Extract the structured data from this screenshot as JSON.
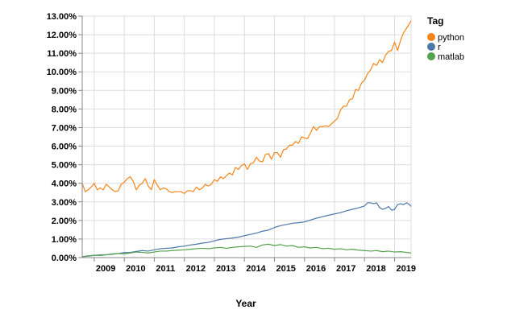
{
  "chart_data": {
    "type": "line",
    "xlabel": "Year",
    "ylabel": "",
    "xlim": [
      2008.6,
      2019.55
    ],
    "ylim": [
      0,
      13
    ],
    "x_ticks": [
      "2009",
      "2010",
      "2011",
      "2012",
      "2013",
      "2014",
      "2015",
      "2016",
      "2017",
      "2018",
      "2019"
    ],
    "y_ticks": [
      "0.00%",
      "1.00%",
      "2.00%",
      "3.00%",
      "4.00%",
      "5.00%",
      "6.00%",
      "7.00%",
      "8.00%",
      "9.00%",
      "10.00%",
      "11.00%",
      "12.00%",
      "13.00%"
    ],
    "grid": true,
    "legend": {
      "title": "Tag",
      "position": "right"
    },
    "series": [
      {
        "name": "python",
        "color": "#f58518",
        "points": [
          [
            2008.6,
            4.0
          ],
          [
            2008.7,
            3.55
          ],
          [
            2008.8,
            3.65
          ],
          [
            2008.9,
            3.8
          ],
          [
            2009.0,
            4.0
          ],
          [
            2009.1,
            3.65
          ],
          [
            2009.2,
            3.75
          ],
          [
            2009.3,
            3.65
          ],
          [
            2009.4,
            3.95
          ],
          [
            2009.5,
            3.8
          ],
          [
            2009.6,
            3.65
          ],
          [
            2009.7,
            3.55
          ],
          [
            2009.8,
            3.6
          ],
          [
            2009.9,
            3.95
          ],
          [
            2010.0,
            4.05
          ],
          [
            2010.1,
            4.25
          ],
          [
            2010.2,
            4.35
          ],
          [
            2010.3,
            4.1
          ],
          [
            2010.4,
            3.65
          ],
          [
            2010.5,
            3.9
          ],
          [
            2010.6,
            4.0
          ],
          [
            2010.7,
            4.25
          ],
          [
            2010.8,
            3.85
          ],
          [
            2010.9,
            3.65
          ],
          [
            2011.0,
            4.2
          ],
          [
            2011.1,
            3.9
          ],
          [
            2011.2,
            3.65
          ],
          [
            2011.3,
            3.75
          ],
          [
            2011.4,
            3.7
          ],
          [
            2011.5,
            3.55
          ],
          [
            2011.6,
            3.5
          ],
          [
            2011.7,
            3.55
          ],
          [
            2011.8,
            3.55
          ],
          [
            2011.9,
            3.55
          ],
          [
            2012.0,
            3.45
          ],
          [
            2012.1,
            3.6
          ],
          [
            2012.2,
            3.6
          ],
          [
            2012.3,
            3.55
          ],
          [
            2012.4,
            3.8
          ],
          [
            2012.5,
            3.65
          ],
          [
            2012.6,
            3.75
          ],
          [
            2012.7,
            3.95
          ],
          [
            2012.8,
            3.85
          ],
          [
            2012.9,
            3.95
          ],
          [
            2013.0,
            4.2
          ],
          [
            2013.1,
            4.1
          ],
          [
            2013.2,
            4.35
          ],
          [
            2013.3,
            4.25
          ],
          [
            2013.4,
            4.4
          ],
          [
            2013.5,
            4.55
          ],
          [
            2013.6,
            4.45
          ],
          [
            2013.7,
            4.85
          ],
          [
            2013.8,
            4.75
          ],
          [
            2013.9,
            4.95
          ],
          [
            2014.0,
            5.05
          ],
          [
            2014.1,
            4.75
          ],
          [
            2014.2,
            5.05
          ],
          [
            2014.3,
            5.1
          ],
          [
            2014.4,
            5.4
          ],
          [
            2014.5,
            5.2
          ],
          [
            2014.6,
            5.15
          ],
          [
            2014.7,
            5.55
          ],
          [
            2014.8,
            5.6
          ],
          [
            2014.9,
            5.3
          ],
          [
            2015.0,
            5.65
          ],
          [
            2015.1,
            5.65
          ],
          [
            2015.2,
            5.4
          ],
          [
            2015.3,
            5.8
          ],
          [
            2015.4,
            5.85
          ],
          [
            2015.5,
            6.05
          ],
          [
            2015.6,
            6.05
          ],
          [
            2015.7,
            6.25
          ],
          [
            2015.8,
            6.15
          ],
          [
            2015.9,
            6.5
          ],
          [
            2016.0,
            6.45
          ],
          [
            2016.1,
            6.4
          ],
          [
            2016.2,
            6.7
          ],
          [
            2016.3,
            7.05
          ],
          [
            2016.4,
            6.85
          ],
          [
            2016.5,
            7.05
          ],
          [
            2016.6,
            7.05
          ],
          [
            2016.7,
            7.1
          ],
          [
            2016.8,
            7.05
          ],
          [
            2016.9,
            7.2
          ],
          [
            2017.0,
            7.35
          ],
          [
            2017.1,
            7.5
          ],
          [
            2017.2,
            7.95
          ],
          [
            2017.3,
            8.15
          ],
          [
            2017.4,
            8.15
          ],
          [
            2017.5,
            8.5
          ],
          [
            2017.6,
            8.55
          ],
          [
            2017.7,
            9.05
          ],
          [
            2017.8,
            9.0
          ],
          [
            2017.9,
            9.4
          ],
          [
            2018.0,
            9.55
          ],
          [
            2018.1,
            9.9
          ],
          [
            2018.2,
            10.1
          ],
          [
            2018.3,
            10.45
          ],
          [
            2018.4,
            10.35
          ],
          [
            2018.5,
            10.65
          ],
          [
            2018.6,
            10.5
          ],
          [
            2018.7,
            10.9
          ],
          [
            2018.8,
            11.1
          ],
          [
            2018.9,
            11.15
          ],
          [
            2019.0,
            11.6
          ],
          [
            2019.1,
            11.15
          ],
          [
            2019.2,
            11.7
          ],
          [
            2019.3,
            12.1
          ],
          [
            2019.4,
            12.35
          ],
          [
            2019.5,
            12.6
          ],
          [
            2019.55,
            12.75
          ]
        ]
      },
      {
        "name": "r",
        "color": "#4c78a8",
        "points": [
          [
            2008.6,
            0.05
          ],
          [
            2008.8,
            0.08
          ],
          [
            2009.0,
            0.12
          ],
          [
            2009.2,
            0.15
          ],
          [
            2009.4,
            0.16
          ],
          [
            2009.6,
            0.18
          ],
          [
            2009.8,
            0.22
          ],
          [
            2010.0,
            0.27
          ],
          [
            2010.2,
            0.28
          ],
          [
            2010.4,
            0.33
          ],
          [
            2010.6,
            0.38
          ],
          [
            2010.8,
            0.35
          ],
          [
            2011.0,
            0.42
          ],
          [
            2011.2,
            0.48
          ],
          [
            2011.4,
            0.5
          ],
          [
            2011.6,
            0.52
          ],
          [
            2011.8,
            0.58
          ],
          [
            2012.0,
            0.62
          ],
          [
            2012.2,
            0.68
          ],
          [
            2012.4,
            0.72
          ],
          [
            2012.6,
            0.78
          ],
          [
            2012.8,
            0.82
          ],
          [
            2013.0,
            0.9
          ],
          [
            2013.2,
            0.98
          ],
          [
            2013.4,
            1.02
          ],
          [
            2013.6,
            1.05
          ],
          [
            2013.8,
            1.1
          ],
          [
            2014.0,
            1.18
          ],
          [
            2014.2,
            1.25
          ],
          [
            2014.4,
            1.32
          ],
          [
            2014.6,
            1.42
          ],
          [
            2014.8,
            1.48
          ],
          [
            2015.0,
            1.62
          ],
          [
            2015.2,
            1.72
          ],
          [
            2015.4,
            1.78
          ],
          [
            2015.6,
            1.85
          ],
          [
            2015.8,
            1.88
          ],
          [
            2016.0,
            1.92
          ],
          [
            2016.2,
            2.02
          ],
          [
            2016.4,
            2.12
          ],
          [
            2016.6,
            2.2
          ],
          [
            2016.8,
            2.28
          ],
          [
            2017.0,
            2.35
          ],
          [
            2017.2,
            2.42
          ],
          [
            2017.4,
            2.52
          ],
          [
            2017.6,
            2.6
          ],
          [
            2017.8,
            2.68
          ],
          [
            2018.0,
            2.78
          ],
          [
            2018.1,
            2.95
          ],
          [
            2018.2,
            2.95
          ],
          [
            2018.3,
            2.9
          ],
          [
            2018.4,
            2.95
          ],
          [
            2018.5,
            2.7
          ],
          [
            2018.6,
            2.6
          ],
          [
            2018.7,
            2.65
          ],
          [
            2018.8,
            2.75
          ],
          [
            2018.9,
            2.55
          ],
          [
            2019.0,
            2.6
          ],
          [
            2019.1,
            2.85
          ],
          [
            2019.2,
            2.9
          ],
          [
            2019.3,
            2.85
          ],
          [
            2019.4,
            2.95
          ],
          [
            2019.5,
            2.85
          ],
          [
            2019.55,
            2.75
          ]
        ]
      },
      {
        "name": "matlab",
        "color": "#54a24b",
        "points": [
          [
            2008.6,
            0.05
          ],
          [
            2008.8,
            0.1
          ],
          [
            2009.0,
            0.12
          ],
          [
            2009.2,
            0.12
          ],
          [
            2009.4,
            0.15
          ],
          [
            2009.6,
            0.2
          ],
          [
            2009.8,
            0.22
          ],
          [
            2010.0,
            0.2
          ],
          [
            2010.2,
            0.25
          ],
          [
            2010.4,
            0.3
          ],
          [
            2010.6,
            0.28
          ],
          [
            2010.8,
            0.25
          ],
          [
            2011.0,
            0.3
          ],
          [
            2011.2,
            0.35
          ],
          [
            2011.4,
            0.35
          ],
          [
            2011.6,
            0.38
          ],
          [
            2011.8,
            0.4
          ],
          [
            2012.0,
            0.42
          ],
          [
            2012.2,
            0.45
          ],
          [
            2012.4,
            0.48
          ],
          [
            2012.6,
            0.5
          ],
          [
            2012.8,
            0.48
          ],
          [
            2013.0,
            0.52
          ],
          [
            2013.2,
            0.55
          ],
          [
            2013.4,
            0.5
          ],
          [
            2013.6,
            0.55
          ],
          [
            2013.8,
            0.58
          ],
          [
            2014.0,
            0.6
          ],
          [
            2014.2,
            0.62
          ],
          [
            2014.4,
            0.55
          ],
          [
            2014.6,
            0.68
          ],
          [
            2014.8,
            0.72
          ],
          [
            2015.0,
            0.65
          ],
          [
            2015.2,
            0.7
          ],
          [
            2015.4,
            0.62
          ],
          [
            2015.6,
            0.65
          ],
          [
            2015.8,
            0.55
          ],
          [
            2016.0,
            0.58
          ],
          [
            2016.2,
            0.52
          ],
          [
            2016.4,
            0.55
          ],
          [
            2016.6,
            0.48
          ],
          [
            2016.8,
            0.5
          ],
          [
            2017.0,
            0.45
          ],
          [
            2017.2,
            0.48
          ],
          [
            2017.4,
            0.42
          ],
          [
            2017.6,
            0.45
          ],
          [
            2017.8,
            0.4
          ],
          [
            2018.0,
            0.38
          ],
          [
            2018.2,
            0.35
          ],
          [
            2018.4,
            0.38
          ],
          [
            2018.6,
            0.32
          ],
          [
            2018.8,
            0.35
          ],
          [
            2019.0,
            0.3
          ],
          [
            2019.2,
            0.32
          ],
          [
            2019.4,
            0.28
          ],
          [
            2019.55,
            0.25
          ]
        ]
      }
    ]
  }
}
